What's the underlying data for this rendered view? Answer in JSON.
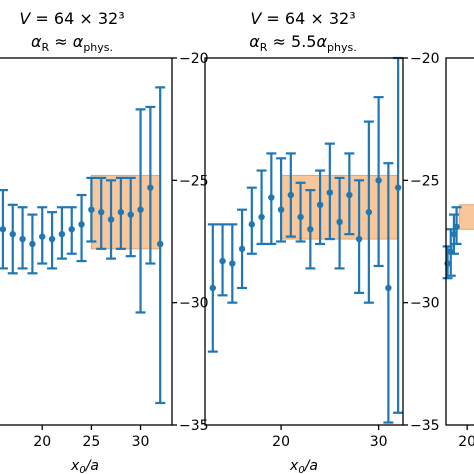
{
  "chart_data": [
    {
      "type": "scatter",
      "title_line1": "V = 64 × 32³",
      "title_line2": "αR ≈ αphys.",
      "xlabel": "x0/a",
      "ylabel": "",
      "xlim": [
        15.5,
        33.2
      ],
      "ylim": [
        -35,
        -20
      ],
      "xticks": [
        20,
        25,
        30
      ],
      "yticks": [
        -20,
        -25,
        -30,
        -35
      ],
      "band": {
        "x": [
          25,
          32.0
        ],
        "y": [
          -24.8,
          -27.8
        ],
        "color": "#f7c79b"
      },
      "series": [
        {
          "marker_color": "#1f77b4",
          "points": [
            {
              "x": 16,
              "y": -27.0,
              "lo": -28.6,
              "hi": -25.4
            },
            {
              "x": 17,
              "y": -27.2,
              "lo": -28.8,
              "hi": -26.0
            },
            {
              "x": 18,
              "y": -27.4,
              "lo": -28.6,
              "hi": -26.1
            },
            {
              "x": 19,
              "y": -27.6,
              "lo": -28.8,
              "hi": -26.4
            },
            {
              "x": 20,
              "y": -27.3,
              "lo": -28.4,
              "hi": -26.1
            },
            {
              "x": 21,
              "y": -27.4,
              "lo": -28.6,
              "hi": -26.3
            },
            {
              "x": 22,
              "y": -27.2,
              "lo": -28.2,
              "hi": -26.1
            },
            {
              "x": 23,
              "y": -27.0,
              "lo": -28.0,
              "hi": -26.1
            },
            {
              "x": 24,
              "y": -26.8,
              "lo": -28.3,
              "hi": -25.6
            },
            {
              "x": 25,
              "y": -26.2,
              "lo": -27.5,
              "hi": -24.9
            },
            {
              "x": 26,
              "y": -26.3,
              "lo": -27.8,
              "hi": -24.9
            },
            {
              "x": 27,
              "y": -26.6,
              "lo": -28.2,
              "hi": -25.0
            },
            {
              "x": 28,
              "y": -26.3,
              "lo": -27.8,
              "hi": -24.9
            },
            {
              "x": 29,
              "y": -26.4,
              "lo": -28.1,
              "hi": -24.9
            },
            {
              "x": 30,
              "y": -26.2,
              "lo": -30.4,
              "hi": -22.1
            },
            {
              "x": 31,
              "y": -25.3,
              "lo": -28.4,
              "hi": -22.0
            },
            {
              "x": 32,
              "y": -27.6,
              "lo": -34.1,
              "hi": -21.2
            }
          ]
        }
      ]
    },
    {
      "type": "scatter",
      "title_line1": "V = 64 × 32³",
      "title_line2": "αR ≈ 5.5αphys.",
      "xlabel": "x0/a",
      "ylabel": "",
      "xlim": [
        12.2,
        32.5
      ],
      "ylim": [
        -35,
        -20
      ],
      "xticks": [
        20,
        30
      ],
      "yticks": [
        -20,
        -25,
        -30,
        -35
      ],
      "band": {
        "x": [
          20,
          31.9
        ],
        "y": [
          -24.8,
          -27.4
        ],
        "color": "#f7c79b"
      },
      "series": [
        {
          "marker_color": "#1f77b4",
          "points": [
            {
              "x": 13,
              "y": -29.4,
              "lo": -32.0,
              "hi": -26.8
            },
            {
              "x": 14,
              "y": -28.3,
              "lo": -29.7,
              "hi": -26.8
            },
            {
              "x": 15,
              "y": -28.4,
              "lo": -30.0,
              "hi": -26.8
            },
            {
              "x": 16,
              "y": -27.8,
              "lo": -29.4,
              "hi": -26.2
            },
            {
              "x": 17,
              "y": -26.8,
              "lo": -28.0,
              "hi": -25.3
            },
            {
              "x": 18,
              "y": -26.5,
              "lo": -27.6,
              "hi": -24.6
            },
            {
              "x": 19,
              "y": -25.7,
              "lo": -27.6,
              "hi": -23.9
            },
            {
              "x": 20,
              "y": -26.2,
              "lo": -27.5,
              "hi": -24.1
            },
            {
              "x": 21,
              "y": -25.6,
              "lo": -27.3,
              "hi": -23.9
            },
            {
              "x": 22,
              "y": -26.5,
              "lo": -27.5,
              "hi": -25.1
            },
            {
              "x": 23,
              "y": -27.0,
              "lo": -28.6,
              "hi": -25.4
            },
            {
              "x": 24,
              "y": -26.0,
              "lo": -27.6,
              "hi": -24.6
            },
            {
              "x": 25,
              "y": -25.5,
              "lo": -27.4,
              "hi": -23.5
            },
            {
              "x": 26,
              "y": -26.7,
              "lo": -28.6,
              "hi": -24.9
            },
            {
              "x": 27,
              "y": -25.6,
              "lo": -27.2,
              "hi": -23.9
            },
            {
              "x": 28,
              "y": -27.4,
              "lo": -29.6,
              "hi": -25.0
            },
            {
              "x": 29,
              "y": -26.3,
              "lo": -30.0,
              "hi": -22.6
            },
            {
              "x": 30,
              "y": -25.0,
              "lo": -28.5,
              "hi": -21.6
            },
            {
              "x": 31,
              "y": -29.4,
              "lo": -34.9,
              "hi": -24.3
            },
            {
              "x": 32,
              "y": -25.3,
              "lo": -34.5,
              "hi": -20.0
            }
          ]
        }
      ]
    },
    {
      "type": "scatter",
      "title_line1": "",
      "title_line2": "",
      "xlabel": "",
      "ylabel": "",
      "xlim": [
        16,
        30
      ],
      "ylim": [
        -35,
        -20
      ],
      "xticks": [
        20
      ],
      "yticks": [],
      "band": {
        "x": [
          18.5,
          30
        ],
        "y": [
          -26.0,
          -27.0
        ],
        "color": "#f7c79b"
      },
      "series": [
        {
          "marker_color": "#1f77b4",
          "points": [
            {
              "x": 16.3,
              "y": -28.4,
              "lo": -29.0,
              "hi": -27.7
            },
            {
              "x": 16.9,
              "y": -27.9,
              "lo": -28.9,
              "hi": -27.0
            },
            {
              "x": 17.5,
              "y": -27.2,
              "lo": -28.0,
              "hi": -26.4
            },
            {
              "x": 18.0,
              "y": -26.9,
              "lo": -27.6,
              "hi": -26.1
            }
          ]
        }
      ]
    }
  ]
}
